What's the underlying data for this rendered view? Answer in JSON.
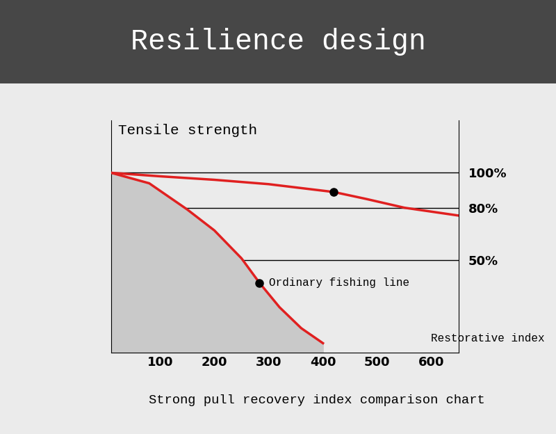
{
  "chart_data": {
    "type": "line",
    "title": "Resilience design",
    "y_label": "Tensile strength",
    "x_label": "Restorative index",
    "caption": "Strong pull recovery index comparison chart",
    "xlim": [
      10,
      650
    ],
    "xticks": [
      100,
      200,
      300,
      400,
      500,
      600
    ],
    "ylim": [
      -3,
      130
    ],
    "yticks": [
      {
        "value": 50,
        "label": "50%"
      },
      {
        "value": 80,
        "label": "80%"
      },
      {
        "value": 100,
        "label": "100%"
      }
    ],
    "grid": true,
    "series": [
      {
        "color": "#e02020",
        "x": [
          10,
          100,
          200,
          300,
          420,
          480,
          550,
          650
        ],
        "values": [
          100,
          98,
          96,
          93.5,
          89,
          85,
          80,
          75.5
        ],
        "marked_point": [
          420,
          89
        ]
      },
      {
        "name": "Ordinary fishing line",
        "color": "#e02020",
        "x": [
          10,
          80,
          150,
          200,
          250,
          283,
          320,
          360,
          400
        ],
        "values": [
          100,
          94,
          79,
          67,
          51,
          37,
          23,
          11,
          2.4
        ],
        "marked_point": [
          283,
          37
        ]
      }
    ]
  }
}
